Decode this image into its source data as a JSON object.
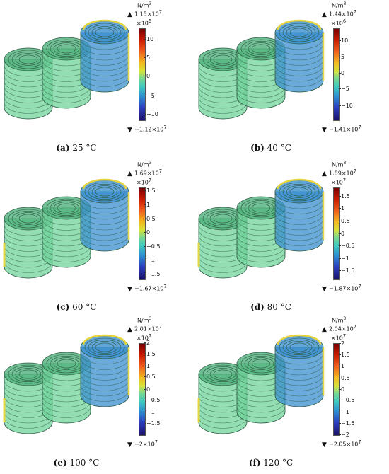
{
  "unit": "N/m",
  "unit_exp": "3",
  "panels": [
    {
      "id": "a",
      "letter": "(a)",
      "caption": "25 °C",
      "max_mant": "1.15",
      "max_exp": "7",
      "min_mant": "−1.12",
      "min_exp": "7",
      "mult": "×10",
      "mult_exp": "6",
      "ticks": [
        "10",
        "5",
        "0",
        "−5",
        "−10"
      ],
      "tick_frac": [
        0.12,
        0.32,
        0.52,
        0.73,
        0.93
      ]
    },
    {
      "id": "b",
      "letter": "(b)",
      "caption": "40 °C",
      "max_mant": "1.44",
      "max_exp": "7",
      "min_mant": "−1.41",
      "min_exp": "7",
      "mult": "×10",
      "mult_exp": "6",
      "ticks": [
        "10",
        "5",
        "0",
        "−5",
        "−10"
      ],
      "tick_frac": [
        0.14,
        0.31,
        0.49,
        0.66,
        0.84
      ]
    },
    {
      "id": "c",
      "letter": "(c)",
      "caption": "60 °C",
      "max_mant": "1.69",
      "max_exp": "7",
      "min_mant": "−1.67",
      "min_exp": "7",
      "mult": "×10",
      "mult_exp": "7",
      "ticks": [
        "1.5",
        "1",
        "0.5",
        "0",
        "−0.5",
        "−1",
        "−1.5"
      ],
      "tick_frac": [
        0.04,
        0.19,
        0.34,
        0.49,
        0.64,
        0.79,
        0.94
      ]
    },
    {
      "id": "d",
      "letter": "(d)",
      "caption": "80 °C",
      "max_mant": "1.89",
      "max_exp": "7",
      "min_mant": "−1.87",
      "min_exp": "7",
      "mult": "×10",
      "mult_exp": "7",
      "ticks": [
        "1.5",
        "1",
        "0.5",
        "0",
        "−0.5",
        "−1",
        "−1.5"
      ],
      "tick_frac": [
        0.1,
        0.23,
        0.37,
        0.5,
        0.63,
        0.77,
        0.9
      ]
    },
    {
      "id": "e",
      "letter": "(e)",
      "caption": "100 °C",
      "max_mant": "2.01",
      "max_exp": "7",
      "min_mant": "−2",
      "min_exp": "7",
      "mult": "×10",
      "mult_exp": "7",
      "ticks": [
        "2",
        "1.5",
        "1",
        "0.5",
        "0",
        "−0.5",
        "−1",
        "−1.5"
      ],
      "tick_frac": [
        0.0,
        0.12,
        0.25,
        0.37,
        0.5,
        0.62,
        0.75,
        0.87
      ]
    },
    {
      "id": "f",
      "letter": "(f)",
      "caption": "120 °C",
      "max_mant": "2.04",
      "max_exp": "7",
      "min_mant": "−2.05",
      "min_exp": "7",
      "mult": "×10",
      "mult_exp": "7",
      "ticks": [
        "2",
        "1.5",
        "1",
        "0.5",
        "0",
        "−0.5",
        "−1",
        "−1.5",
        "−2"
      ],
      "tick_frac": [
        0.01,
        0.13,
        0.25,
        0.38,
        0.5,
        0.62,
        0.75,
        0.87,
        0.99
      ]
    }
  ],
  "colors": {
    "coil_fill": "#6fd39a",
    "coil_dark": "#4fb07a",
    "coil_hot": "#e8d640",
    "coil_cool": "#3a8fd0",
    "edge": "#2f5a44"
  }
}
